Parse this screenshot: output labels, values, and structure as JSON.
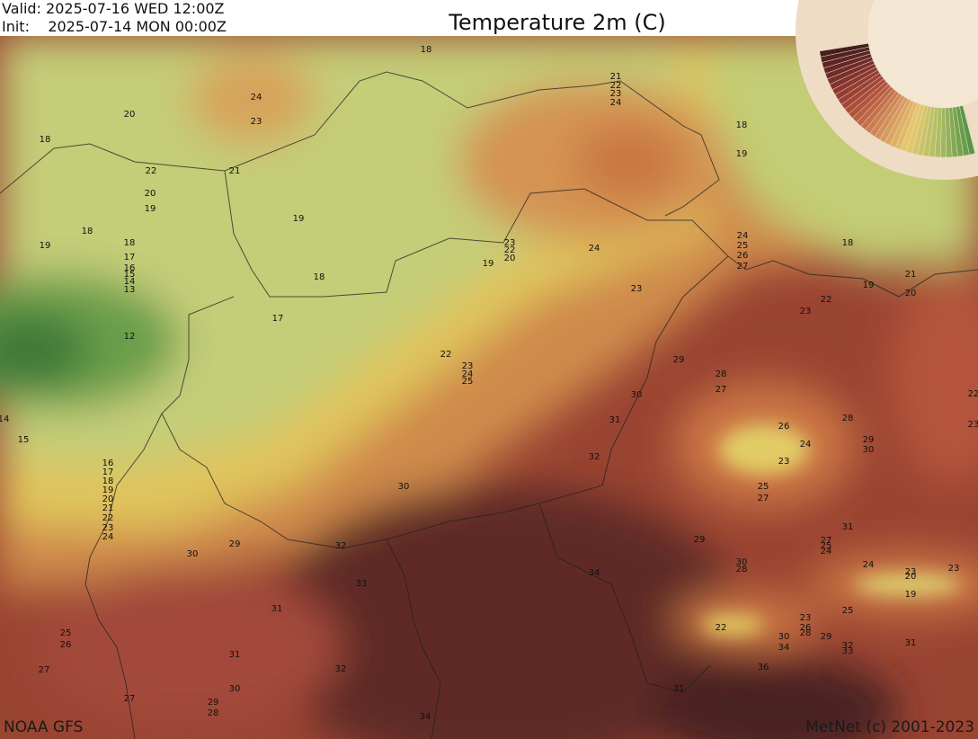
{
  "header": {
    "valid": "Valid: 2025-07-16 WED 12:00Z",
    "init": "Init:    2025-07-14 MON 00:00Z",
    "title": "Temperature 2m (C)"
  },
  "footer": {
    "source": "NOAA GFS",
    "credit": "MetNet (c) 2001-2023"
  },
  "contour_labels": [
    18,
    24,
    23,
    20,
    18,
    22,
    21,
    20,
    19,
    21,
    22,
    23,
    24,
    18,
    19,
    19,
    18,
    19,
    18,
    17,
    16,
    15,
    14,
    13,
    12,
    18,
    17,
    23,
    22,
    20,
    19,
    24,
    23,
    24,
    25,
    26,
    27,
    18,
    21,
    19,
    20,
    22,
    23,
    22,
    23,
    24,
    25,
    29,
    28,
    27,
    30,
    31,
    26,
    28,
    24,
    29,
    30,
    23,
    25,
    27,
    32,
    30,
    14,
    15,
    16,
    17,
    18,
    19,
    20,
    21,
    22,
    23,
    24,
    31,
    30,
    29,
    32,
    29,
    30,
    28,
    27,
    25,
    24,
    24,
    23,
    20,
    23,
    34,
    33,
    19,
    31,
    25,
    25,
    26,
    22,
    23,
    26,
    28,
    30,
    29,
    34,
    32,
    33,
    31,
    31,
    27,
    32,
    36,
    30,
    31,
    27,
    29,
    28,
    34,
    22,
    23
  ]
}
